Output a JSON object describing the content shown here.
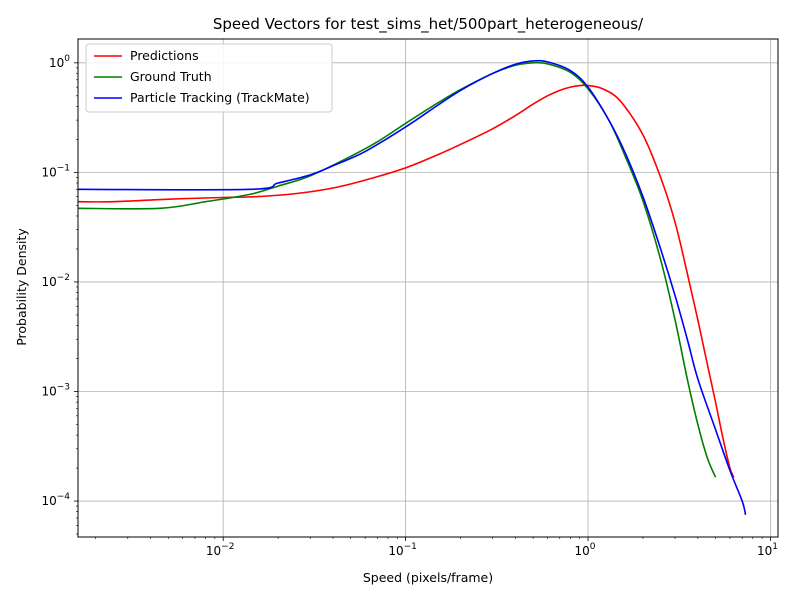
{
  "chart_data": {
    "type": "line",
    "title": "Speed Vectors for test_sims_het/500part_heterogeneous/",
    "xlabel": "Speed (pixels/frame)",
    "ylabel": "Probability Density",
    "xscale": "log",
    "yscale": "log",
    "xlim": [
      0.0016,
      11
    ],
    "ylim": [
      4.7e-05,
      1.65
    ],
    "grid": true,
    "legend_position": "top-left",
    "x_ticks": [
      {
        "value": 0.01,
        "base": "10",
        "exp": "−2"
      },
      {
        "value": 0.1,
        "base": "10",
        "exp": "−1"
      },
      {
        "value": 1,
        "base": "10",
        "exp": "0"
      },
      {
        "value": 10,
        "base": "10",
        "exp": "1"
      }
    ],
    "y_ticks": [
      {
        "value": 0.0001,
        "base": "10",
        "exp": "−4"
      },
      {
        "value": 0.001,
        "base": "10",
        "exp": "−3"
      },
      {
        "value": 0.01,
        "base": "10",
        "exp": "−2"
      },
      {
        "value": 0.1,
        "base": "10",
        "exp": "−1"
      },
      {
        "value": 1,
        "base": "10",
        "exp": "0"
      }
    ],
    "series": [
      {
        "name": "Predictions",
        "color": "#ff0000",
        "points": [
          [
            0.0016,
            0.054
          ],
          [
            0.0025,
            0.054
          ],
          [
            0.005,
            0.057
          ],
          [
            0.01,
            0.059
          ],
          [
            0.015,
            0.06
          ],
          [
            0.025,
            0.064
          ],
          [
            0.04,
            0.072
          ],
          [
            0.06,
            0.085
          ],
          [
            0.1,
            0.11
          ],
          [
            0.15,
            0.145
          ],
          [
            0.2,
            0.18
          ],
          [
            0.3,
            0.25
          ],
          [
            0.4,
            0.33
          ],
          [
            0.5,
            0.42
          ],
          [
            0.6,
            0.5
          ],
          [
            0.7,
            0.56
          ],
          [
            0.8,
            0.6
          ],
          [
            0.9,
            0.62
          ],
          [
            1.0,
            0.62
          ],
          [
            1.2,
            0.58
          ],
          [
            1.5,
            0.45
          ],
          [
            2.0,
            0.22
          ],
          [
            2.5,
            0.09
          ],
          [
            3.0,
            0.035
          ],
          [
            3.5,
            0.012
          ],
          [
            4.0,
            0.0045
          ],
          [
            4.5,
            0.0018
          ],
          [
            5.0,
            0.0008
          ],
          [
            5.5,
            0.00037
          ],
          [
            6.0,
            0.0002
          ],
          [
            6.3,
            0.000165
          ]
        ]
      },
      {
        "name": "Ground Truth",
        "color": "#008000",
        "points": [
          [
            0.0016,
            0.047
          ],
          [
            0.0045,
            0.047
          ],
          [
            0.008,
            0.054
          ],
          [
            0.014,
            0.063
          ],
          [
            0.02,
            0.075
          ],
          [
            0.03,
            0.093
          ],
          [
            0.05,
            0.14
          ],
          [
            0.07,
            0.19
          ],
          [
            0.1,
            0.28
          ],
          [
            0.15,
            0.43
          ],
          [
            0.2,
            0.57
          ],
          [
            0.3,
            0.8
          ],
          [
            0.4,
            0.95
          ],
          [
            0.5,
            1.0
          ],
          [
            0.6,
            0.98
          ],
          [
            0.8,
            0.82
          ],
          [
            1.0,
            0.58
          ],
          [
            1.3,
            0.3
          ],
          [
            1.6,
            0.14
          ],
          [
            2.0,
            0.055
          ],
          [
            2.5,
            0.016
          ],
          [
            3.0,
            0.0045
          ],
          [
            3.5,
            0.0013
          ],
          [
            4.0,
            0.0005
          ],
          [
            4.5,
            0.00025
          ],
          [
            5.0,
            0.000165
          ]
        ]
      },
      {
        "name": "Particle Tracking (TrackMate)",
        "color": "#0000ff",
        "points": [
          [
            0.0016,
            0.07
          ],
          [
            0.014,
            0.07
          ],
          [
            0.02,
            0.08
          ],
          [
            0.03,
            0.095
          ],
          [
            0.04,
            0.115
          ],
          [
            0.06,
            0.155
          ],
          [
            0.1,
            0.26
          ],
          [
            0.15,
            0.41
          ],
          [
            0.2,
            0.56
          ],
          [
            0.3,
            0.8
          ],
          [
            0.4,
            0.97
          ],
          [
            0.5,
            1.04
          ],
          [
            0.6,
            1.02
          ],
          [
            0.8,
            0.85
          ],
          [
            1.0,
            0.6
          ],
          [
            1.3,
            0.3
          ],
          [
            1.6,
            0.15
          ],
          [
            2.0,
            0.06
          ],
          [
            2.5,
            0.02
          ],
          [
            3.0,
            0.0075
          ],
          [
            3.5,
            0.003
          ],
          [
            4.0,
            0.0013
          ],
          [
            5.0,
            0.00045
          ],
          [
            6.0,
            0.00019
          ],
          [
            7.0,
            0.0001
          ],
          [
            7.3,
            7.5e-05
          ]
        ]
      }
    ]
  }
}
